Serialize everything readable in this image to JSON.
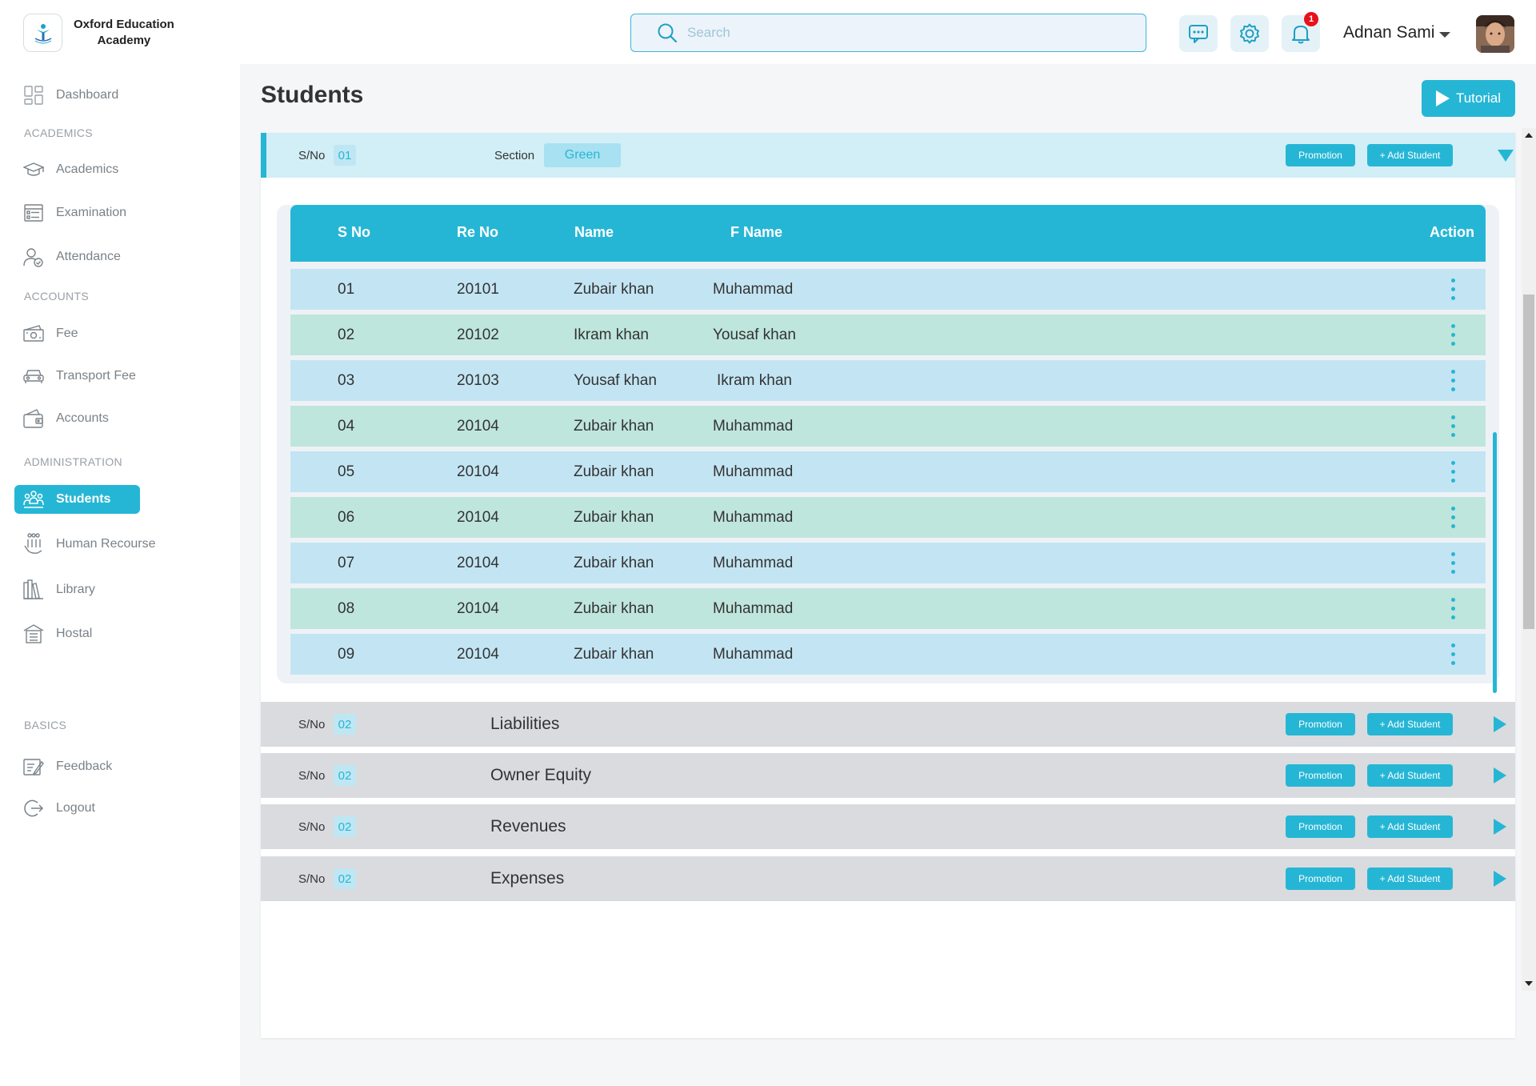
{
  "brand": {
    "name_line1": "Oxford Education",
    "name_line2": "Academy"
  },
  "search": {
    "placeholder": "Search",
    "value": ""
  },
  "header": {
    "notification_count": "1",
    "user_name": "Adnan Sami"
  },
  "sidebar": {
    "dashboard": "Dashboard",
    "sections": [
      "ACADEMICS",
      "ACCOUNTS",
      "ADMINISTRATION",
      "BASICS"
    ],
    "academics": [
      "Academics",
      "Examination",
      "Attendance"
    ],
    "accounts": [
      "Fee",
      "Transport Fee",
      "Accounts"
    ],
    "administration": [
      "Students",
      "Human Recourse",
      "Library",
      "Hostal"
    ],
    "basics": [
      "Feedback",
      "Logout"
    ]
  },
  "page": {
    "title": "Students",
    "tutorial_label": "Tutorial"
  },
  "open_group": {
    "sno_label": "S/No",
    "sno_value": "01",
    "section_label": "Section",
    "section_value": "Green",
    "promotion_label": "Promotion",
    "add_label": "+ Add Student"
  },
  "table": {
    "headers": [
      "S No",
      "Re No",
      "Name",
      "F Name",
      "Action"
    ],
    "rows": [
      [
        "01",
        "20101",
        "Zubair khan",
        "Muhammad"
      ],
      [
        "02",
        "20102",
        "Ikram khan",
        "Yousaf khan"
      ],
      [
        "03",
        "20103",
        "Yousaf khan",
        "Ikram khan"
      ],
      [
        "04",
        "20104",
        "Zubair khan",
        "Muhammad"
      ],
      [
        "05",
        "20104",
        "Zubair khan",
        "Muhammad"
      ],
      [
        "06",
        "20104",
        "Zubair khan",
        "Muhammad"
      ],
      [
        "07",
        "20104",
        "Zubair khan",
        "Muhammad"
      ],
      [
        "08",
        "20104",
        "Zubair khan",
        "Muhammad"
      ],
      [
        "09",
        "20104",
        "Zubair khan",
        "Muhammad"
      ]
    ]
  },
  "groups": [
    {
      "sno_label": "S/No",
      "sno_value": "02",
      "title": "Liabilities",
      "promotion_label": "Promotion",
      "add_label": "+ Add Student"
    },
    {
      "sno_label": "S/No",
      "sno_value": "02",
      "title": "Owner Equity",
      "promotion_label": "Promotion",
      "add_label": "+ Add Student"
    },
    {
      "sno_label": "S/No",
      "sno_value": "02",
      "title": "Revenues",
      "promotion_label": "Promotion",
      "add_label": "+ Add Student"
    },
    {
      "sno_label": "S/No",
      "sno_value": "02",
      "title": "Expenses",
      "promotion_label": "Promotion",
      "add_label": "+ Add Student"
    }
  ],
  "colors": {
    "accent": "#26b6d5",
    "row_blue": "#c3e5f3",
    "row_green": "#bfe6dc",
    "badge": "#e8101a"
  }
}
